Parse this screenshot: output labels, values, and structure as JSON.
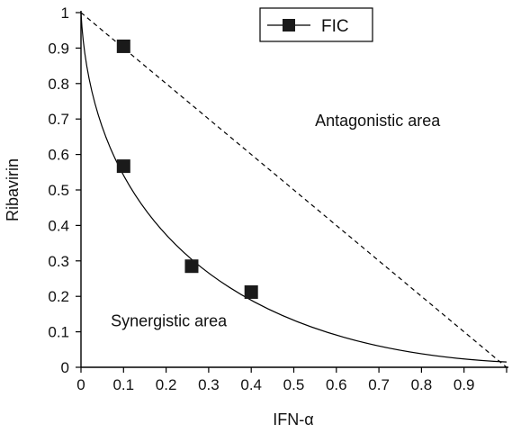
{
  "chart_data": {
    "type": "scatter",
    "xlabel": "IFN-α",
    "ylabel": "Ribavirin",
    "xlim": [
      0,
      1
    ],
    "ylim": [
      0,
      1
    ],
    "x_ticks": [
      "0",
      "0.1",
      "0.2",
      "0.3",
      "0.4",
      "0.5",
      "0.6",
      "0.7",
      "0.8",
      "0.9"
    ],
    "y_ticks": [
      "0",
      "0.1",
      "0.2",
      "0.3",
      "0.4",
      "0.5",
      "0.6",
      "0.7",
      "0.8",
      "0.9",
      "1"
    ],
    "grid": false,
    "legend_position": "top-right",
    "series": [
      {
        "name": "FIC",
        "marker": "square",
        "points": [
          {
            "x": 0.1,
            "y": 0.905
          },
          {
            "x": 0.1,
            "y": 0.567
          },
          {
            "x": 0.26,
            "y": 0.285
          },
          {
            "x": 0.4,
            "y": 0.212
          }
        ]
      }
    ],
    "reference_lines": [
      {
        "style": "dashed",
        "from": [
          0,
          1
        ],
        "to": [
          1,
          0
        ]
      },
      {
        "style": "solid",
        "shape": "curve",
        "from": [
          0,
          1
        ],
        "to": [
          1,
          0.015
        ]
      }
    ],
    "annotations": [
      {
        "text": "Antagonistic area",
        "x": 0.55,
        "y": 0.68
      },
      {
        "text": "Synergistic area",
        "x": 0.07,
        "y": 0.115
      }
    ],
    "colors": {
      "marker": "#1a1a1a",
      "line": "#000000"
    }
  }
}
